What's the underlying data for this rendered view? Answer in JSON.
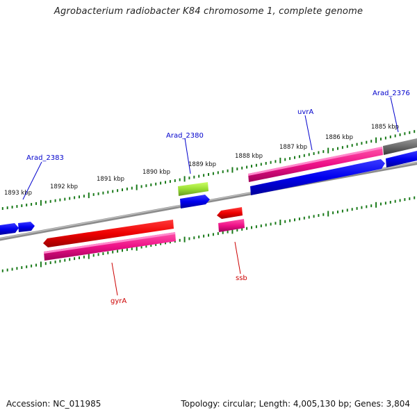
{
  "title": "Agrobacterium radiobacter K84 chromosome 1, complete genome",
  "footer": {
    "accession": "Accession: NC_011985",
    "topology": "Topology: circular; Length: 4,005,130 bp; Genes: 3,804"
  },
  "ticks": {
    "1893": "1893 kbp",
    "1892": "1892 kbp",
    "1891": "1891 kbp",
    "1890": "1890 kbp",
    "1889": "1889 kbp",
    "1888": "1888 kbp",
    "1887": "1887 kbp",
    "1886": "1886 kbp",
    "1885": "1885 kbp"
  },
  "labels": {
    "arad_2383": "Arad_2383",
    "arad_2380": "Arad_2380",
    "uvra": "uvrA",
    "arad_2376": "Arad_2376",
    "gyra": "gyrA",
    "ssb": "ssb"
  },
  "colors": {
    "backbone": "#808080",
    "tick": "#1a7a1a",
    "cds_forward": "#0000ee",
    "gene_forward": "#ee1188",
    "cds_reverse": "#ee0000",
    "gene_reverse": "#ee1188",
    "rna": "#99dd33",
    "other": "#666666",
    "label_forward": "#0000cc",
    "label_reverse": "#cc0000"
  }
}
